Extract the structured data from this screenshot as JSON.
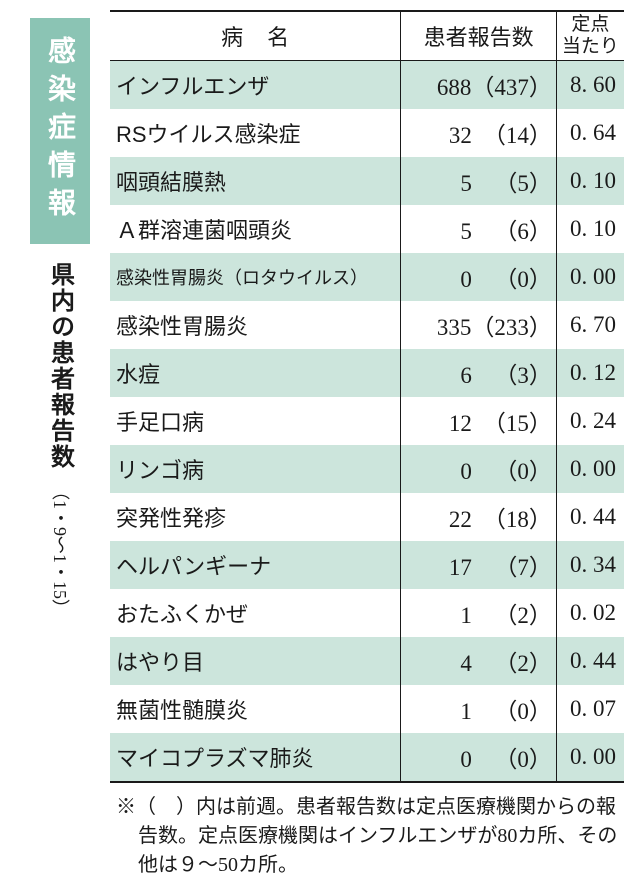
{
  "badge": "感染症情報",
  "subtitle": "県内の患者報告数",
  "period": "（1・9～1・15）",
  "columns": {
    "name": "病名",
    "count": "患者報告数",
    "rate": "定点\n当たり"
  },
  "rows": [
    {
      "name": "インフルエンザ",
      "count": 688,
      "prev": 437,
      "rate": "8. 60",
      "small": false
    },
    {
      "name": "RSウイルス感染症",
      "count": 32,
      "prev": 14,
      "rate": "0. 64",
      "small": false
    },
    {
      "name": "咽頭結膜熱",
      "count": 5,
      "prev": 5,
      "rate": "0. 10",
      "small": false
    },
    {
      "name": "Ａ群溶連菌咽頭炎",
      "count": 5,
      "prev": 6,
      "rate": "0. 10",
      "small": false
    },
    {
      "name": "感染性胃腸炎（ロタウイルス）",
      "count": 0,
      "prev": 0,
      "rate": "0. 00",
      "small": true
    },
    {
      "name": "感染性胃腸炎",
      "count": 335,
      "prev": 233,
      "rate": "6. 70",
      "small": false
    },
    {
      "name": "水痘",
      "count": 6,
      "prev": 3,
      "rate": "0. 12",
      "small": false
    },
    {
      "name": "手足口病",
      "count": 12,
      "prev": 15,
      "rate": "0. 24",
      "small": false
    },
    {
      "name": "リンゴ病",
      "count": 0,
      "prev": 0,
      "rate": "0. 00",
      "small": false
    },
    {
      "name": "突発性発疹",
      "count": 22,
      "prev": 18,
      "rate": "0. 44",
      "small": false
    },
    {
      "name": "ヘルパンギーナ",
      "count": 17,
      "prev": 7,
      "rate": "0. 34",
      "small": false
    },
    {
      "name": "おたふくかぜ",
      "count": 1,
      "prev": 2,
      "rate": "0. 02",
      "small": false
    },
    {
      "name": "はやり目",
      "count": 4,
      "prev": 2,
      "rate": "0. 44",
      "small": false
    },
    {
      "name": "無菌性髄膜炎",
      "count": 1,
      "prev": 0,
      "rate": "0. 07",
      "small": false
    },
    {
      "name": "マイコプラズマ肺炎",
      "count": 0,
      "prev": 0,
      "rate": "0. 00",
      "small": false
    }
  ],
  "footnote": "※（　）内は前週。患者報告数は定点医療機関からの報告数。定点医療機関はインフルエンザが80カ所、その他は９～50カ所。",
  "colors": {
    "badge_bg": "#8bc4b4",
    "badge_fg": "#ffffff",
    "stripe_bg": "#cce5dc",
    "border": "#1a1a1a",
    "text": "#1a1a1a",
    "background": "#ffffff"
  }
}
